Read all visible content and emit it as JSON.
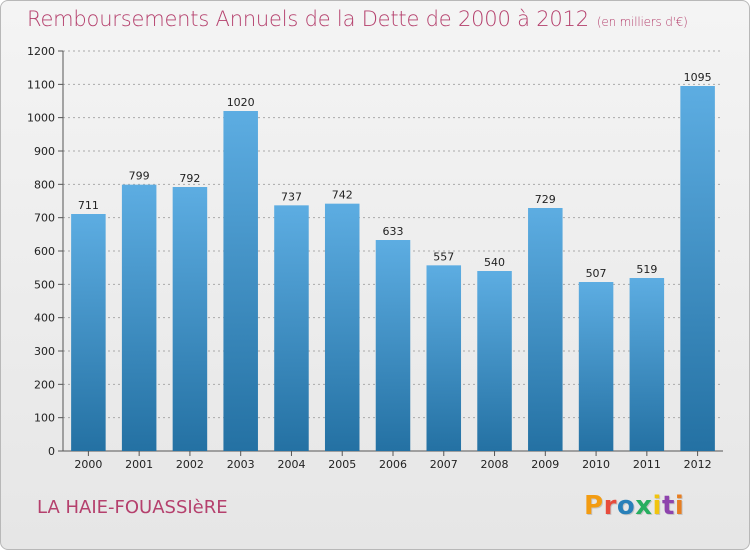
{
  "header": {
    "title": "Remboursements Annuels de la Dette de 2000 à 2012",
    "unit": "(en milliers d'€)"
  },
  "footer": {
    "city": "LA HAIE-FOUASSIèRE",
    "brand": "Proxiti",
    "brand_colors": [
      "#f39c12",
      "#e74c3c",
      "#2980b9",
      "#27ae60",
      "#f1c40f",
      "#8e44ad",
      "#e67e22"
    ]
  },
  "colors": {
    "bar_top": "#5dade2",
    "bar_bottom": "#2471a3",
    "text_accent": "#b5406d",
    "grid": "#aaaaaa"
  },
  "chart_data": {
    "type": "bar",
    "title": "Remboursements Annuels de la Dette de 2000 à 2012",
    "subtitle": "(en milliers d'€)",
    "xlabel": "",
    "ylabel": "",
    "categories": [
      "2000",
      "2001",
      "2002",
      "2003",
      "2004",
      "2005",
      "2006",
      "2007",
      "2008",
      "2009",
      "2010",
      "2011",
      "2012"
    ],
    "values": [
      711,
      799,
      792,
      1020,
      737,
      742,
      633,
      557,
      540,
      729,
      507,
      519,
      1095
    ],
    "ylim": [
      0,
      1200
    ],
    "yticks": [
      0,
      100,
      200,
      300,
      400,
      500,
      600,
      700,
      800,
      900,
      1000,
      1100,
      1200
    ],
    "grid": "horizontal dashed",
    "legend": "none"
  }
}
